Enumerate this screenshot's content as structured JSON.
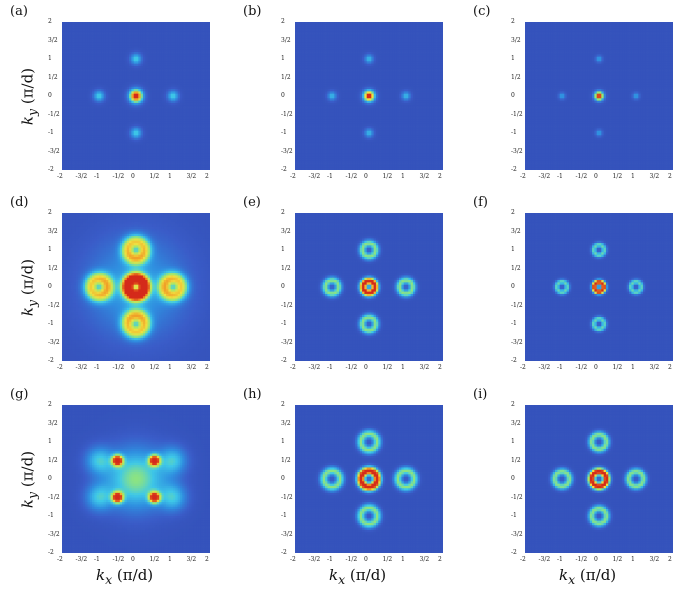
{
  "figure": {
    "panel_labels": [
      "(a)",
      "(b)",
      "(c)",
      "(d)",
      "(e)",
      "(f)",
      "(g)",
      "(h)",
      "(i)"
    ],
    "x_axis": {
      "symbol": "k",
      "subscript": "x",
      "unit": "(π/d)"
    },
    "y_axis": {
      "symbol": "k",
      "subscript": "y",
      "unit": "(π/d)"
    },
    "tick_labels": [
      "-2",
      "-3/2",
      "-1",
      "-1/2",
      "0",
      "1/2",
      "1",
      "3/2",
      "2"
    ],
    "colormap": [
      "#2a3fa0",
      "#3a5cc8",
      "#2f8fe0",
      "#3ec8e8",
      "#9ae870",
      "#f0e040",
      "#f08a20",
      "#d42a1a"
    ]
  },
  "chart_data": [
    {
      "type": "heatmap",
      "panel": "(a)",
      "xlim": [
        -2,
        2
      ],
      "ylim": [
        -2,
        2
      ],
      "features": [
        {
          "kind": "spot",
          "x": 0,
          "y": 0,
          "peak": 1.0,
          "width": 0.12
        },
        {
          "kind": "spot",
          "x": 1,
          "y": 0,
          "peak": 0.35,
          "width": 0.1
        },
        {
          "kind": "spot",
          "x": -1,
          "y": 0,
          "peak": 0.35,
          "width": 0.1
        },
        {
          "kind": "spot",
          "x": 0,
          "y": 1,
          "peak": 0.35,
          "width": 0.1
        },
        {
          "kind": "spot",
          "x": 0,
          "y": -1,
          "peak": 0.35,
          "width": 0.1
        }
      ]
    },
    {
      "type": "heatmap",
      "panel": "(b)",
      "xlim": [
        -2,
        2
      ],
      "ylim": [
        -2,
        2
      ],
      "features": [
        {
          "kind": "spot",
          "x": 0,
          "y": 0,
          "peak": 1.0,
          "width": 0.1
        },
        {
          "kind": "spot",
          "x": 1,
          "y": 0,
          "peak": 0.3,
          "width": 0.08
        },
        {
          "kind": "spot",
          "x": -1,
          "y": 0,
          "peak": 0.3,
          "width": 0.08
        },
        {
          "kind": "spot",
          "x": 0,
          "y": 1,
          "peak": 0.3,
          "width": 0.08
        },
        {
          "kind": "spot",
          "x": 0,
          "y": -1,
          "peak": 0.3,
          "width": 0.08
        }
      ]
    },
    {
      "type": "heatmap",
      "panel": "(c)",
      "xlim": [
        -2,
        2
      ],
      "ylim": [
        -2,
        2
      ],
      "features": [
        {
          "kind": "spot",
          "x": 0,
          "y": 0,
          "peak": 1.0,
          "width": 0.08
        },
        {
          "kind": "spot",
          "x": 1,
          "y": 0,
          "peak": 0.25,
          "width": 0.06
        },
        {
          "kind": "spot",
          "x": -1,
          "y": 0,
          "peak": 0.25,
          "width": 0.06
        },
        {
          "kind": "spot",
          "x": 0,
          "y": 1,
          "peak": 0.25,
          "width": 0.06
        },
        {
          "kind": "spot",
          "x": 0,
          "y": -1,
          "peak": 0.25,
          "width": 0.06
        }
      ]
    },
    {
      "type": "heatmap",
      "panel": "(d)",
      "xlim": [
        -2,
        2
      ],
      "ylim": [
        -2,
        2
      ],
      "features": [
        {
          "kind": "ring",
          "x": 0,
          "y": 0,
          "radius": 0.22,
          "peak": 1.0,
          "width": 0.12
        },
        {
          "kind": "ring",
          "x": 1,
          "y": 0,
          "radius": 0.22,
          "peak": 0.55,
          "width": 0.14
        },
        {
          "kind": "ring",
          "x": -1,
          "y": 0,
          "radius": 0.22,
          "peak": 0.55,
          "width": 0.14
        },
        {
          "kind": "ring",
          "x": 0,
          "y": 1,
          "radius": 0.22,
          "peak": 0.55,
          "width": 0.14
        },
        {
          "kind": "ring",
          "x": 0,
          "y": -1,
          "radius": 0.22,
          "peak": 0.55,
          "width": 0.14
        },
        {
          "kind": "spot",
          "x": 0,
          "y": 0,
          "peak": 0.25,
          "width": 0.9
        }
      ]
    },
    {
      "type": "heatmap",
      "panel": "(e)",
      "xlim": [
        -2,
        2
      ],
      "ylim": [
        -2,
        2
      ],
      "features": [
        {
          "kind": "ring",
          "x": 0,
          "y": 0,
          "radius": 0.16,
          "peak": 1.0,
          "width": 0.07
        },
        {
          "kind": "ring",
          "x": 1,
          "y": 0,
          "radius": 0.18,
          "peak": 0.45,
          "width": 0.07
        },
        {
          "kind": "ring",
          "x": -1,
          "y": 0,
          "radius": 0.18,
          "peak": 0.45,
          "width": 0.07
        },
        {
          "kind": "ring",
          "x": 0,
          "y": 1,
          "radius": 0.18,
          "peak": 0.45,
          "width": 0.07
        },
        {
          "kind": "ring",
          "x": 0,
          "y": -1,
          "radius": 0.18,
          "peak": 0.45,
          "width": 0.07
        }
      ]
    },
    {
      "type": "heatmap",
      "panel": "(f)",
      "xlim": [
        -2,
        2
      ],
      "ylim": [
        -2,
        2
      ],
      "features": [
        {
          "kind": "ring",
          "x": 0,
          "y": 0,
          "radius": 0.13,
          "peak": 1.0,
          "width": 0.05
        },
        {
          "kind": "ring",
          "x": 1,
          "y": 0,
          "radius": 0.14,
          "peak": 0.4,
          "width": 0.05
        },
        {
          "kind": "ring",
          "x": -1,
          "y": 0,
          "radius": 0.14,
          "peak": 0.4,
          "width": 0.05
        },
        {
          "kind": "ring",
          "x": 0,
          "y": 1,
          "radius": 0.14,
          "peak": 0.4,
          "width": 0.05
        },
        {
          "kind": "ring",
          "x": 0,
          "y": -1,
          "radius": 0.14,
          "peak": 0.4,
          "width": 0.05
        }
      ]
    },
    {
      "type": "heatmap",
      "panel": "(g)",
      "xlim": [
        -2,
        2
      ],
      "ylim": [
        -2,
        2
      ],
      "features": [
        {
          "kind": "spot",
          "x": -0.5,
          "y": 0.5,
          "peak": 1.0,
          "width": 0.1
        },
        {
          "kind": "spot",
          "x": 0.5,
          "y": 0.5,
          "peak": 1.0,
          "width": 0.1
        },
        {
          "kind": "spot",
          "x": -0.5,
          "y": -0.5,
          "peak": 1.0,
          "width": 0.1
        },
        {
          "kind": "spot",
          "x": 0.5,
          "y": -0.5,
          "peak": 1.0,
          "width": 0.1
        },
        {
          "kind": "spot",
          "x": 0,
          "y": 0,
          "peak": 0.45,
          "width": 0.55
        },
        {
          "kind": "spot",
          "x": -1,
          "y": 0.5,
          "peak": 0.3,
          "width": 0.25
        },
        {
          "kind": "spot",
          "x": 1,
          "y": 0.5,
          "peak": 0.3,
          "width": 0.25
        },
        {
          "kind": "spot",
          "x": -1,
          "y": -0.5,
          "peak": 0.3,
          "width": 0.25
        },
        {
          "kind": "spot",
          "x": 1,
          "y": -0.5,
          "peak": 0.3,
          "width": 0.25
        }
      ]
    },
    {
      "type": "heatmap",
      "panel": "(h)",
      "xlim": [
        -2,
        2
      ],
      "ylim": [
        -2,
        2
      ],
      "features": [
        {
          "kind": "ring",
          "x": 0,
          "y": 0,
          "radius": 0.22,
          "peak": 1.0,
          "width": 0.08
        },
        {
          "kind": "ring",
          "x": 1,
          "y": 0,
          "radius": 0.22,
          "peak": 0.45,
          "width": 0.08
        },
        {
          "kind": "ring",
          "x": -1,
          "y": 0,
          "radius": 0.22,
          "peak": 0.45,
          "width": 0.08
        },
        {
          "kind": "ring",
          "x": 0,
          "y": 1,
          "radius": 0.22,
          "peak": 0.45,
          "width": 0.08
        },
        {
          "kind": "ring",
          "x": 0,
          "y": -1,
          "radius": 0.22,
          "peak": 0.45,
          "width": 0.08
        }
      ]
    },
    {
      "type": "heatmap",
      "panel": "(i)",
      "xlim": [
        -2,
        2
      ],
      "ylim": [
        -2,
        2
      ],
      "features": [
        {
          "kind": "ring",
          "x": 0,
          "y": 0,
          "radius": 0.2,
          "peak": 1.0,
          "width": 0.07
        },
        {
          "kind": "ring",
          "x": 1,
          "y": 0,
          "radius": 0.2,
          "peak": 0.45,
          "width": 0.07
        },
        {
          "kind": "ring",
          "x": -1,
          "y": 0,
          "radius": 0.2,
          "peak": 0.45,
          "width": 0.07
        },
        {
          "kind": "ring",
          "x": 0,
          "y": 1,
          "radius": 0.2,
          "peak": 0.45,
          "width": 0.07
        },
        {
          "kind": "ring",
          "x": 0,
          "y": -1,
          "radius": 0.2,
          "peak": 0.45,
          "width": 0.07
        }
      ]
    }
  ]
}
